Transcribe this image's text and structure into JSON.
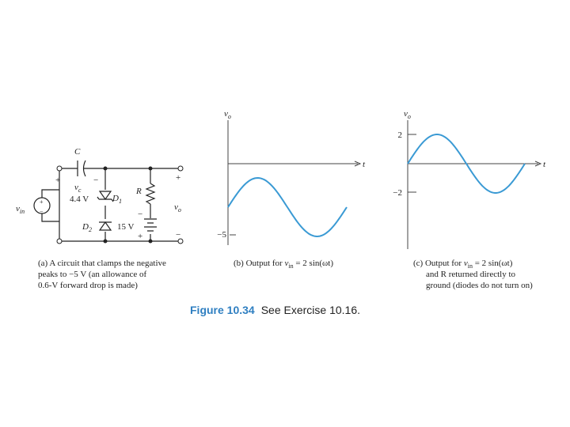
{
  "circuit": {
    "capacitor": {
      "name": "C",
      "voltage": "v",
      "voltage_sub": "c",
      "plus": "+",
      "minus": "−"
    },
    "source": {
      "name": "v",
      "name_sub": "in",
      "plus": "+",
      "minus": "−"
    },
    "d1": {
      "voltage": "4.4 V",
      "name": "D",
      "name_sub": "1"
    },
    "d2": {
      "name": "D",
      "name_sub": "2"
    },
    "resistor": "R",
    "battery": {
      "voltage": "15 V",
      "minus": "−",
      "plus": "+"
    },
    "output": {
      "name": "v",
      "name_sub": "o",
      "plus": "+",
      "minus": "−"
    }
  },
  "captions": {
    "a": [
      "(a) A circuit that clamps the negative",
      "peaks to −5 V (an allowance of",
      "0.6-V forward drop is made)"
    ],
    "b": {
      "pre": "(b) Output for ",
      "var": "v",
      "sub": "in",
      "post": " = 2 sin(ωt)"
    },
    "c": {
      "pre": "(c) Output for ",
      "var": "v",
      "sub": "in",
      "post": " = 2 sin(ωt)",
      "lines": [
        "and R returned directly to",
        "ground (diodes do not turn on)"
      ]
    }
  },
  "plot_b": {
    "y_label": "v",
    "y_label_sub": "o",
    "x_label": "t",
    "tick": "−5"
  },
  "plot_c": {
    "y_label": "v",
    "y_label_sub": "o",
    "x_label": "t",
    "ticks": [
      "2",
      "−2"
    ]
  },
  "figure": {
    "number": "Figure 10.34",
    "text": "See Exercise 10.16."
  }
}
